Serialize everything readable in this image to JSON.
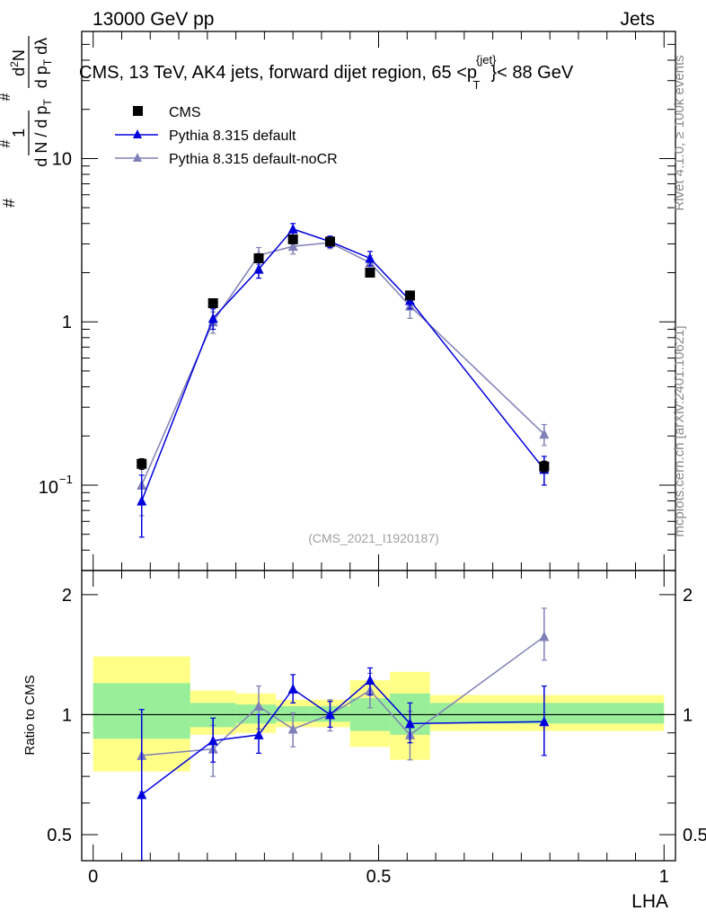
{
  "header": {
    "left": "13000 GeV pp",
    "right": "Jets"
  },
  "side_labels": {
    "rivet": "Rivet 4.1.0, ≥ 100k events",
    "mcplots": "mcplots.cern.ch [arXiv:2401.10621]"
  },
  "colors": {
    "cms": "#000000",
    "pythia_default": "#0000dd",
    "pythia_nocr": "#8080b8",
    "band_inner": "#99ee99",
    "band_outer": "#ffff88"
  },
  "chart_data": [
    {
      "type": "scatter",
      "name": "main",
      "title": "CMS, 13 TeV, AK4 jets, forward dijet region, 65 <p",
      "title_super": "{jet}",
      "title_sub": "T",
      "title_tail": "}< 88 GeV",
      "watermark": "(CMS_2021_I1920187)",
      "ylabel_html": "1/N dN/dp_T d²N/dp_T dλ",
      "yscale": "log",
      "xlim": [
        -0.02,
        1.02
      ],
      "ylim": [
        0.03,
        60
      ],
      "y_tick_labels": {
        "10": "10",
        "1": "1",
        "0.1": "10"
      },
      "y_tick_exponent": "−1",
      "legend": [
        "CMS",
        "Pythia 8.315 default",
        "Pythia 8.315 default-noCR"
      ],
      "legend_placement": "top-left",
      "series": [
        {
          "name": "CMS",
          "marker": "square",
          "x": [
            0.085,
            0.21,
            0.29,
            0.35,
            0.415,
            0.485,
            0.555,
            0.79
          ],
          "y": [
            0.135,
            1.3,
            2.45,
            3.2,
            3.1,
            2.0,
            1.45,
            0.13
          ],
          "yerr": [
            0.01,
            0.05,
            0.08,
            0.08,
            0.08,
            0.06,
            0.05,
            0.01
          ]
        },
        {
          "name": "Pythia 8.315 default",
          "marker": "triangle",
          "x": [
            0.085,
            0.21,
            0.29,
            0.35,
            0.415,
            0.485,
            0.555,
            0.79
          ],
          "y": [
            0.08,
            1.05,
            2.1,
            3.7,
            3.1,
            2.45,
            1.35,
            0.125
          ],
          "yerr_lo": [
            0.032,
            0.15,
            0.25,
            0.3,
            0.25,
            0.25,
            0.15,
            0.025
          ],
          "yerr_hi": [
            0.035,
            0.15,
            0.25,
            0.3,
            0.25,
            0.25,
            0.15,
            0.025
          ]
        },
        {
          "name": "Pythia 8.315 default-noCR",
          "marker": "triangle",
          "x": [
            0.085,
            0.21,
            0.29,
            0.35,
            0.415,
            0.485,
            0.555,
            0.79
          ],
          "y": [
            0.1,
            1.0,
            2.55,
            2.9,
            3.05,
            2.3,
            1.25,
            0.205
          ],
          "yerr_lo": [
            0.035,
            0.15,
            0.3,
            0.3,
            0.25,
            0.25,
            0.2,
            0.03
          ],
          "yerr_hi": [
            0.03,
            0.15,
            0.3,
            0.3,
            0.25,
            0.25,
            0.2,
            0.03
          ]
        }
      ]
    },
    {
      "type": "scatter",
      "name": "ratio",
      "ylabel": "Ratio to CMS",
      "xlabel": "LHA",
      "yscale": "log",
      "xlim": [
        -0.02,
        1.02
      ],
      "ylim": [
        0.43,
        2.3
      ],
      "x_tick_labels": [
        "0",
        "0.5",
        "1"
      ],
      "x_ticks": [
        0,
        0.5,
        1
      ],
      "y_tick_labels": [
        "0.5",
        "1",
        "2"
      ],
      "y_ticks": [
        0.5,
        1,
        2
      ],
      "bands": [
        {
          "x0": 0.0,
          "x1": 0.17,
          "inner": [
            0.87,
            1.2
          ],
          "outer": [
            0.72,
            1.4
          ]
        },
        {
          "x0": 0.17,
          "x1": 0.25,
          "inner": [
            0.93,
            1.07
          ],
          "outer": [
            0.89,
            1.15
          ]
        },
        {
          "x0": 0.25,
          "x1": 0.32,
          "inner": [
            0.95,
            1.06
          ],
          "outer": [
            0.9,
            1.13
          ]
        },
        {
          "x0": 0.32,
          "x1": 0.38,
          "inner": [
            0.96,
            1.05
          ],
          "outer": [
            0.93,
            1.09
          ]
        },
        {
          "x0": 0.38,
          "x1": 0.45,
          "inner": [
            0.96,
            1.05
          ],
          "outer": [
            0.93,
            1.09
          ]
        },
        {
          "x0": 0.45,
          "x1": 0.52,
          "inner": [
            0.91,
            1.1
          ],
          "outer": [
            0.83,
            1.22
          ]
        },
        {
          "x0": 0.52,
          "x1": 0.59,
          "inner": [
            0.89,
            1.13
          ],
          "outer": [
            0.77,
            1.28
          ]
        },
        {
          "x0": 0.59,
          "x1": 1.0,
          "inner": [
            0.95,
            1.07
          ],
          "outer": [
            0.91,
            1.12
          ]
        }
      ],
      "series": [
        {
          "name": "Pythia 8.315 default",
          "x": [
            0.085,
            0.21,
            0.29,
            0.35,
            0.415,
            0.485,
            0.555,
            0.79
          ],
          "y": [
            0.63,
            0.86,
            0.89,
            1.16,
            1.0,
            1.22,
            0.95,
            0.96
          ],
          "yerr_lo": [
            0.2,
            0.1,
            0.09,
            0.09,
            0.07,
            0.1,
            0.1,
            0.17
          ],
          "yerr_hi": [
            0.4,
            0.12,
            0.11,
            0.1,
            0.08,
            0.09,
            0.12,
            0.22
          ]
        },
        {
          "name": "Pythia 8.315 default-noCR",
          "x": [
            0.085,
            0.21,
            0.29,
            0.35,
            0.415,
            0.485,
            0.555,
            0.79
          ],
          "y": [
            0.79,
            0.82,
            1.05,
            0.92,
            1.0,
            1.15,
            0.89,
            1.57
          ],
          "yerr_lo": [
            0.15,
            0.12,
            0.13,
            0.09,
            0.09,
            0.11,
            0.12,
            0.2
          ],
          "yerr_hi": [
            0.24,
            0.12,
            0.13,
            0.09,
            0.09,
            0.12,
            0.13,
            0.28
          ]
        }
      ]
    }
  ]
}
